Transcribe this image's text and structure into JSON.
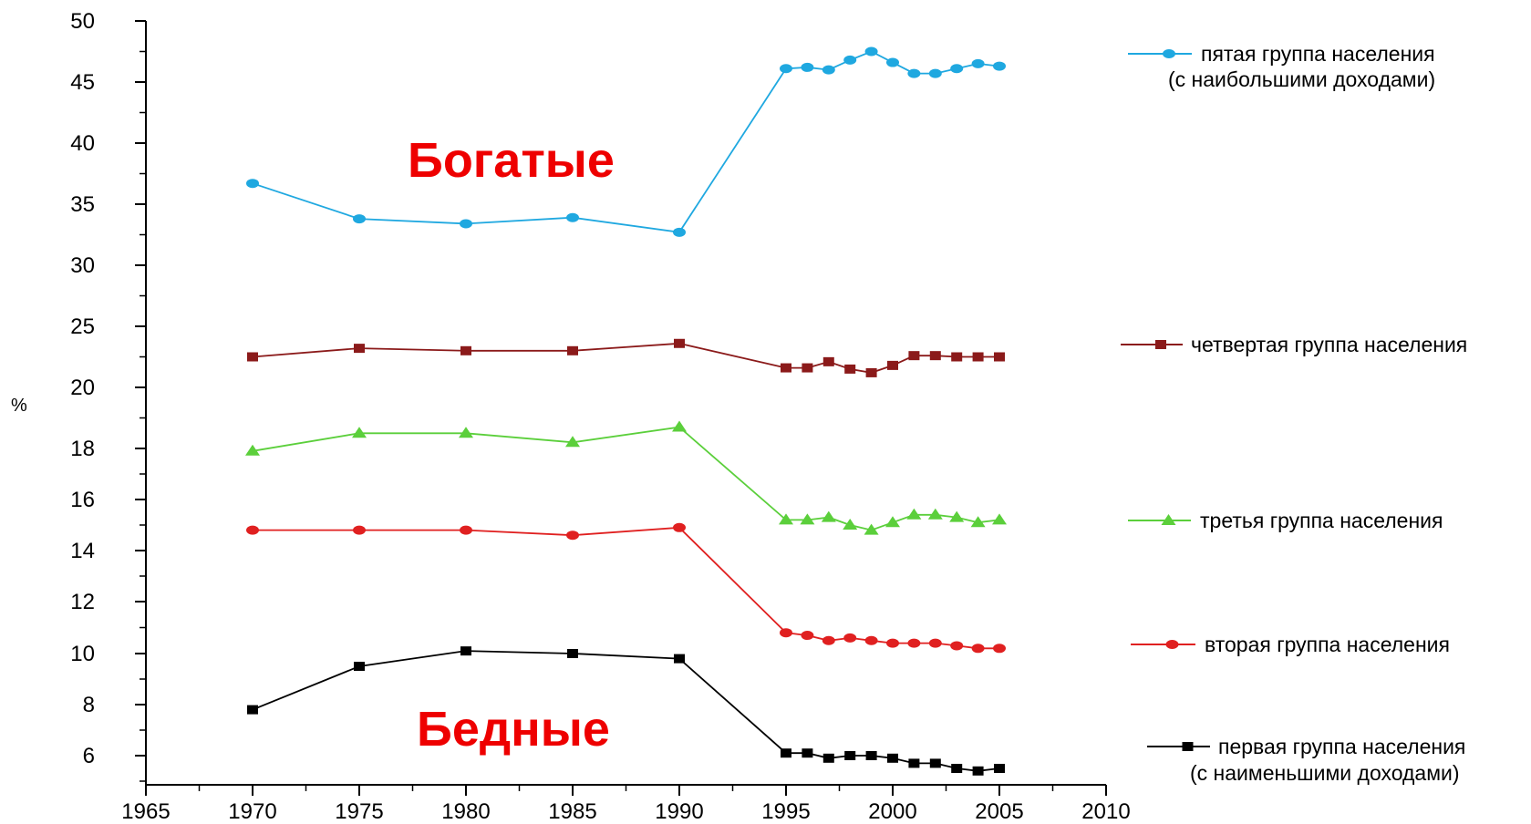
{
  "chart_data": {
    "type": "line",
    "title": "",
    "xlabel": "",
    "ylabel": "%",
    "xlim": [
      1965,
      2010
    ],
    "x_ticks": [
      "1965",
      "1970",
      "1975",
      "1980",
      "1985",
      "1990",
      "1995",
      "2000",
      "2005",
      "2010"
    ],
    "y_ticks": [
      "6",
      "8",
      "10",
      "12",
      "14",
      "16",
      "18",
      "20",
      "25",
      "30",
      "35",
      "40",
      "45",
      "50"
    ],
    "y_scale": "piecewise: ticks 6–20 step 2, then 20–50 step 5",
    "grid": false,
    "legend_position": "right",
    "annotations": [
      "Богатые",
      "Бедные"
    ],
    "colors": {
      "fifth": "#1fa8e0",
      "fourth": "#8b1a1a",
      "third": "#5bcf3b",
      "second": "#e02020",
      "first": "#000000",
      "annotation": "#ee0000"
    },
    "series": [
      {
        "key": "fifth",
        "name": "пятая группа населения (с наибольшими доходами)",
        "legend_lines": [
          "пятая группа населения",
          "(с наибольшими доходами)"
        ],
        "marker": "circle",
        "x": [
          1970,
          1975,
          1980,
          1985,
          1990,
          1995,
          1996,
          1997,
          1998,
          1999,
          2000,
          2001,
          2002,
          2003,
          2004,
          2005
        ],
        "values": [
          36.7,
          33.8,
          33.4,
          33.9,
          32.7,
          46.1,
          46.2,
          46.0,
          46.8,
          47.5,
          46.6,
          45.7,
          45.7,
          46.1,
          46.5,
          46.3
        ]
      },
      {
        "key": "fourth",
        "name": "четвертая группа населения",
        "legend_lines": [
          "четвертая группа населения"
        ],
        "marker": "square",
        "x": [
          1970,
          1975,
          1980,
          1985,
          1990,
          1995,
          1996,
          1997,
          1998,
          1999,
          2000,
          2001,
          2002,
          2003,
          2004,
          2005
        ],
        "values": [
          22.5,
          23.2,
          23.0,
          23.0,
          23.6,
          21.6,
          21.6,
          22.1,
          21.5,
          21.2,
          21.8,
          22.6,
          22.6,
          22.5,
          22.5,
          22.5
        ]
      },
      {
        "key": "third",
        "name": "третья группа населения",
        "legend_lines": [
          "третья группа населения"
        ],
        "marker": "triangle",
        "x": [
          1970,
          1975,
          1980,
          1985,
          1990,
          1995,
          1996,
          1997,
          1998,
          1999,
          2000,
          2001,
          2002,
          2003,
          2004,
          2005
        ],
        "values": [
          17.9,
          18.5,
          18.5,
          18.2,
          18.7,
          15.2,
          15.2,
          15.3,
          15.0,
          14.8,
          15.1,
          15.4,
          15.4,
          15.3,
          15.1,
          15.2
        ]
      },
      {
        "key": "second",
        "name": "вторая группа населения",
        "legend_lines": [
          "вторая группа населения"
        ],
        "marker": "circle",
        "x": [
          1970,
          1975,
          1980,
          1985,
          1990,
          1995,
          1996,
          1997,
          1998,
          1999,
          2000,
          2001,
          2002,
          2003,
          2004,
          2005
        ],
        "values": [
          14.8,
          14.8,
          14.8,
          14.6,
          14.9,
          10.8,
          10.7,
          10.5,
          10.6,
          10.5,
          10.4,
          10.4,
          10.4,
          10.3,
          10.2,
          10.2
        ]
      },
      {
        "key": "first",
        "name": "первая группа населения (с наименьшими доходами)",
        "legend_lines": [
          "первая группа населения",
          "(с наименьшими доходами)"
        ],
        "marker": "square",
        "x": [
          1970,
          1975,
          1980,
          1985,
          1990,
          1995,
          1996,
          1997,
          1998,
          1999,
          2000,
          2001,
          2002,
          2003,
          2004,
          2005
        ],
        "values": [
          7.8,
          9.5,
          10.1,
          10.0,
          9.8,
          6.1,
          6.1,
          5.9,
          6.0,
          6.0,
          5.9,
          5.7,
          5.7,
          5.5,
          5.4,
          5.5
        ]
      }
    ]
  }
}
